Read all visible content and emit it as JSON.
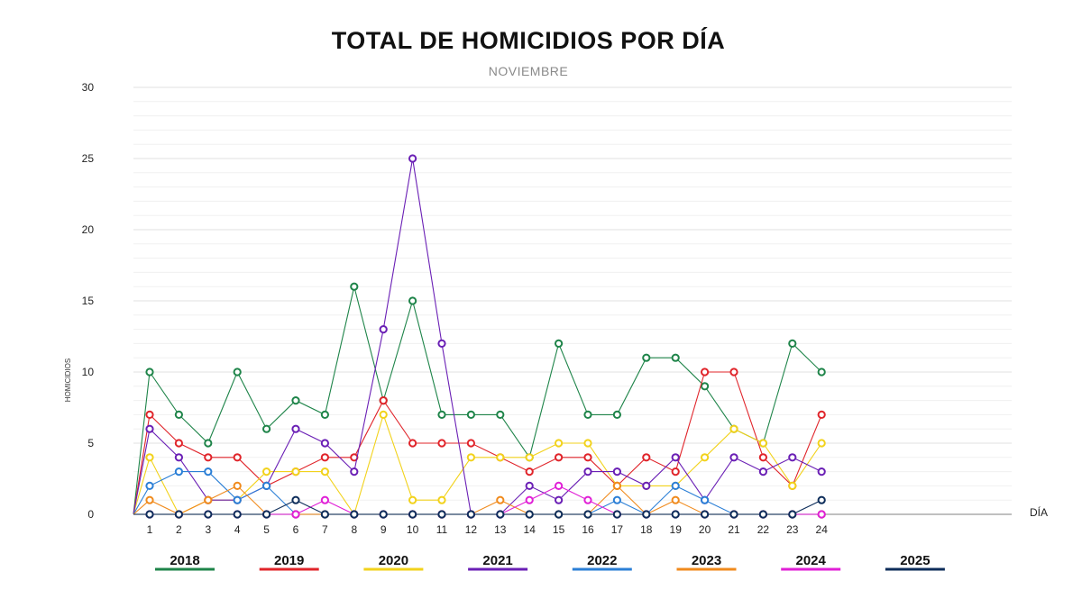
{
  "chart_data": {
    "type": "line",
    "title": "TOTAL DE HOMICIDIOS POR DÍA",
    "subtitle": "NOVIEMBRE",
    "xlabel": "DÍA",
    "ylabel": "HOMICIDIOS",
    "ylim": [
      0,
      30
    ],
    "yticks": [
      0,
      5,
      10,
      15,
      20,
      25,
      30
    ],
    "grid": true,
    "legend_position": "bottom",
    "categories": [
      "1",
      "2",
      "3",
      "4",
      "5",
      "6",
      "7",
      "8",
      "9",
      "10",
      "11",
      "12",
      "13",
      "14",
      "15",
      "16",
      "17",
      "18",
      "19",
      "20",
      "21",
      "22",
      "23",
      "24"
    ],
    "series": [
      {
        "name": "2018",
        "color": "#1e8449",
        "values": [
          10,
          7,
          5,
          10,
          6,
          8,
          7,
          16,
          8,
          15,
          7,
          7,
          7,
          4,
          12,
          7,
          7,
          11,
          11,
          9,
          6,
          5,
          12,
          10
        ]
      },
      {
        "name": "2019",
        "color": "#e0242a",
        "values": [
          7,
          5,
          4,
          4,
          2,
          3,
          4,
          4,
          8,
          5,
          5,
          5,
          4,
          3,
          4,
          4,
          2,
          4,
          3,
          10,
          10,
          4,
          2,
          7
        ]
      },
      {
        "name": "2020",
        "color": "#f2d21b",
        "values": [
          4,
          0,
          1,
          1,
          3,
          3,
          3,
          0,
          7,
          1,
          1,
          4,
          4,
          4,
          5,
          5,
          2,
          2,
          2,
          4,
          6,
          5,
          2,
          5
        ]
      },
      {
        "name": "2021",
        "color": "#6a1fb5",
        "values": [
          6,
          4,
          1,
          1,
          2,
          6,
          5,
          3,
          13,
          25,
          12,
          0,
          0,
          2,
          1,
          3,
          3,
          2,
          4,
          1,
          4,
          3,
          4,
          3
        ]
      },
      {
        "name": "2022",
        "color": "#2b7fd6",
        "values": [
          2,
          3,
          3,
          1,
          2,
          0,
          0,
          0,
          0,
          0,
          0,
          0,
          0,
          0,
          0,
          0,
          1,
          0,
          2,
          1,
          0,
          0,
          0,
          0
        ]
      },
      {
        "name": "2023",
        "color": "#f08a1c",
        "values": [
          1,
          0,
          1,
          2,
          0,
          0,
          0,
          0,
          0,
          0,
          0,
          0,
          1,
          0,
          0,
          0,
          2,
          0,
          1,
          0,
          0,
          0,
          0,
          0
        ]
      },
      {
        "name": "2024",
        "color": "#e01fd6",
        "values": [
          0,
          0,
          0,
          0,
          0,
          0,
          1,
          0,
          0,
          0,
          0,
          0,
          0,
          1,
          2,
          1,
          0,
          0,
          0,
          0,
          0,
          0,
          0,
          0
        ]
      },
      {
        "name": "2025",
        "color": "#0d2d5a",
        "values": [
          0,
          0,
          0,
          0,
          0,
          1,
          0,
          0,
          0,
          0,
          0,
          0,
          0,
          0,
          0,
          0,
          0,
          0,
          0,
          0,
          0,
          0,
          0,
          1
        ]
      }
    ]
  }
}
